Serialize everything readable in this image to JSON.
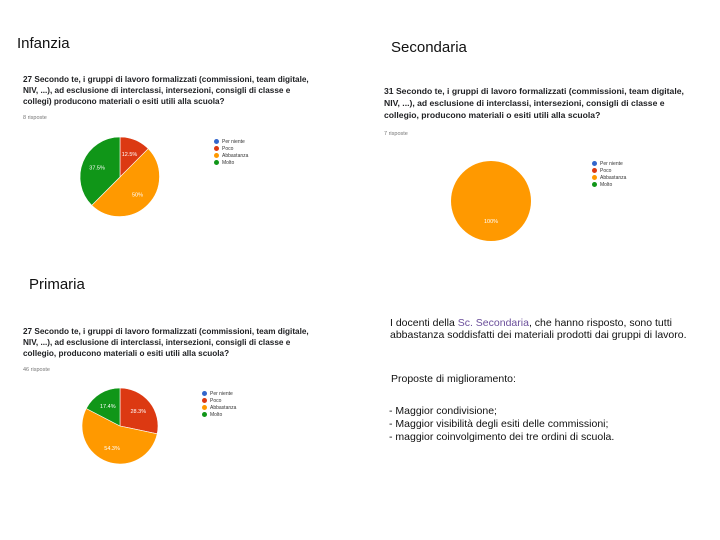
{
  "sections": {
    "infanzia": "Infanzia",
    "secondaria": "Secondaria",
    "primaria": "Primaria"
  },
  "legend_labels": [
    "Per niente",
    "Poco",
    "Abbastanza",
    "Molto"
  ],
  "colors": {
    "per_niente": "#3366cc",
    "poco": "#dc3912",
    "abbastanza": "#ff9900",
    "molto": "#109618"
  },
  "chart_data": [
    {
      "type": "pie",
      "question": "27 Secondo te, i gruppi di lavoro formalizzati (commissioni, team digitale, NIV, ...), ad esclusione di interclassi, intersezioni, consigli di classe e collegi) producono materiali o esiti utili alla scuola?",
      "responses": "8 risposte",
      "categories": [
        "Per niente",
        "Poco",
        "Abbastanza",
        "Molto"
      ],
      "values": [
        0,
        12.5,
        50,
        37.5
      ],
      "labels": [
        "",
        "12.5%",
        "50%",
        "37.5%"
      ]
    },
    {
      "type": "pie",
      "question": "31 Secondo te, i gruppi di lavoro formalizzati (commissioni, team digitale, NIV, ...), ad esclusione di interclassi, intersezioni, consigli di classe e collegio, producono materiali o esiti utili alla scuola?",
      "responses": "7 risposte",
      "categories": [
        "Per niente",
        "Poco",
        "Abbastanza",
        "Molto"
      ],
      "values": [
        0,
        0,
        100,
        0
      ],
      "labels": [
        "",
        "",
        "100%",
        ""
      ]
    },
    {
      "type": "pie",
      "question": "27 Secondo te, i gruppi di lavoro formalizzati (commissioni, team digitale, NIV, ...), ad esclusione di interclassi, intersezioni, consigli di classe e collegio, producono materiali o esiti utili alla scuola?",
      "responses": "46 risposte",
      "categories": [
        "Per niente",
        "Poco",
        "Abbastanza",
        "Molto"
      ],
      "values": [
        0,
        28.3,
        54.3,
        17.4
      ],
      "labels": [
        "",
        "28.3%",
        "54.3%",
        "17.4%"
      ]
    }
  ],
  "note": {
    "prefix": "I docenti della ",
    "highlight": "Sc. Secondaria",
    "suffix": ", che hanno risposto, sono tutti abbastanza soddisfatti dei materiali prodotti dai gruppi di lavoro.",
    "proposals_title": "Proposte di miglioramento:",
    "proposals": [
      " - Maggior condivisione;",
      "- Maggior visibilità degli esiti delle commissioni;",
      "- maggior coinvolgimento dei tre ordini di scuola."
    ]
  }
}
